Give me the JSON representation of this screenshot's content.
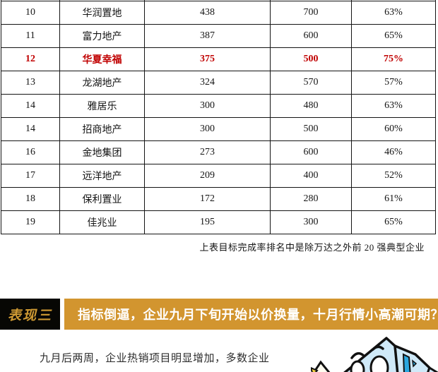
{
  "table": {
    "rows": [
      {
        "rank": "10",
        "company": "华润置地",
        "sales": "438",
        "target": "700",
        "completion": "63%",
        "highlight": false
      },
      {
        "rank": "11",
        "company": "富力地产",
        "sales": "387",
        "target": "600",
        "completion": "65%",
        "highlight": false
      },
      {
        "rank": "12",
        "company": "华夏幸福",
        "sales": "375",
        "target": "500",
        "completion": "75%",
        "highlight": true
      },
      {
        "rank": "13",
        "company": "龙湖地产",
        "sales": "324",
        "target": "570",
        "completion": "57%",
        "highlight": false
      },
      {
        "rank": "14",
        "company": "雅居乐",
        "sales": "300",
        "target": "480",
        "completion": "63%",
        "highlight": false
      },
      {
        "rank": "14",
        "company": "招商地产",
        "sales": "300",
        "target": "500",
        "completion": "60%",
        "highlight": false
      },
      {
        "rank": "16",
        "company": "金地集团",
        "sales": "273",
        "target": "600",
        "completion": "46%",
        "highlight": false
      },
      {
        "rank": "17",
        "company": "远洋地产",
        "sales": "209",
        "target": "400",
        "completion": "52%",
        "highlight": false
      },
      {
        "rank": "18",
        "company": "保利置业",
        "sales": "172",
        "target": "280",
        "completion": "61%",
        "highlight": false
      },
      {
        "rank": "19",
        "company": "佳兆业",
        "sales": "195",
        "target": "300",
        "completion": "65%",
        "highlight": false
      }
    ],
    "footnote": "上表目标完成率排名中是除万达之外前 20 强典型企业"
  },
  "section": {
    "tag": "表现三",
    "title": "指标倒逼，企业九月下旬开始以价换量，十月行情小高潮可期？"
  },
  "body_text": "九月后两周，企业热销项目明显增加，多数企业",
  "illustration": "dice-cartoon",
  "colors": {
    "accent_gold": "#d2952f",
    "tag_bg": "#070704",
    "tag_text": "#cf9a33",
    "highlight_red": "#c00000",
    "table_border": "#141414",
    "dice_blue": "#cfe9f8",
    "dice_dark_blue": "#2aa7e0"
  }
}
